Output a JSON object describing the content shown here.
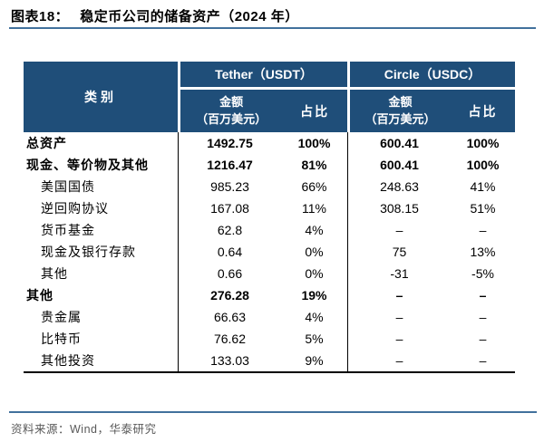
{
  "title": {
    "prefix": "图表18：",
    "text": "稳定币公司的储备资产（2024 年）"
  },
  "table": {
    "category_header": "类别",
    "sections": [
      {
        "name": "Tether（USDT）",
        "amount_header_line1": "金额",
        "amount_header_line2": "（百万美元）",
        "share_header": "占比"
      },
      {
        "name": "Circle（USDC）",
        "amount_header_line1": "金额",
        "amount_header_line2": "（百万美元）",
        "share_header": "占比"
      }
    ],
    "rows": [
      {
        "label": "总资产",
        "tether_amount": "1492.75",
        "tether_share": "100%",
        "circle_amount": "600.41",
        "circle_share": "100%"
      },
      {
        "label": "现金、等价物及其他",
        "tether_amount": "1216.47",
        "tether_share": "81%",
        "circle_amount": "600.41",
        "circle_share": "100%"
      },
      {
        "label": "美国国债",
        "tether_amount": "985.23",
        "tether_share": "66%",
        "circle_amount": "248.63",
        "circle_share": "41%"
      },
      {
        "label": "逆回购协议",
        "tether_amount": "167.08",
        "tether_share": "11%",
        "circle_amount": "308.15",
        "circle_share": "51%"
      },
      {
        "label": "货币基金",
        "tether_amount": "62.8",
        "tether_share": "4%",
        "circle_amount": "–",
        "circle_share": "–"
      },
      {
        "label": "现金及银行存款",
        "tether_amount": "0.64",
        "tether_share": "0%",
        "circle_amount": "75",
        "circle_share": "13%"
      },
      {
        "label": "其他",
        "tether_amount": "0.66",
        "tether_share": "0%",
        "circle_amount": "-31",
        "circle_share": "-5%"
      },
      {
        "label": "其他",
        "tether_amount": "276.28",
        "tether_share": "19%",
        "circle_amount": "–",
        "circle_share": "–"
      },
      {
        "label": "贵金属",
        "tether_amount": "66.63",
        "tether_share": "4%",
        "circle_amount": "–",
        "circle_share": "–"
      },
      {
        "label": "比特币",
        "tether_amount": "76.62",
        "tether_share": "5%",
        "circle_amount": "–",
        "circle_share": "–"
      },
      {
        "label": "其他投资",
        "tether_amount": "133.03",
        "tether_share": "9%",
        "circle_amount": "–",
        "circle_share": "–"
      }
    ]
  },
  "footer": {
    "source": "资料来源：Wind，华泰研究"
  },
  "colors": {
    "header_bg": "#1F4E79",
    "rule_blue": "#41719C",
    "footer_text": "#595959",
    "body_text": "#000000"
  }
}
